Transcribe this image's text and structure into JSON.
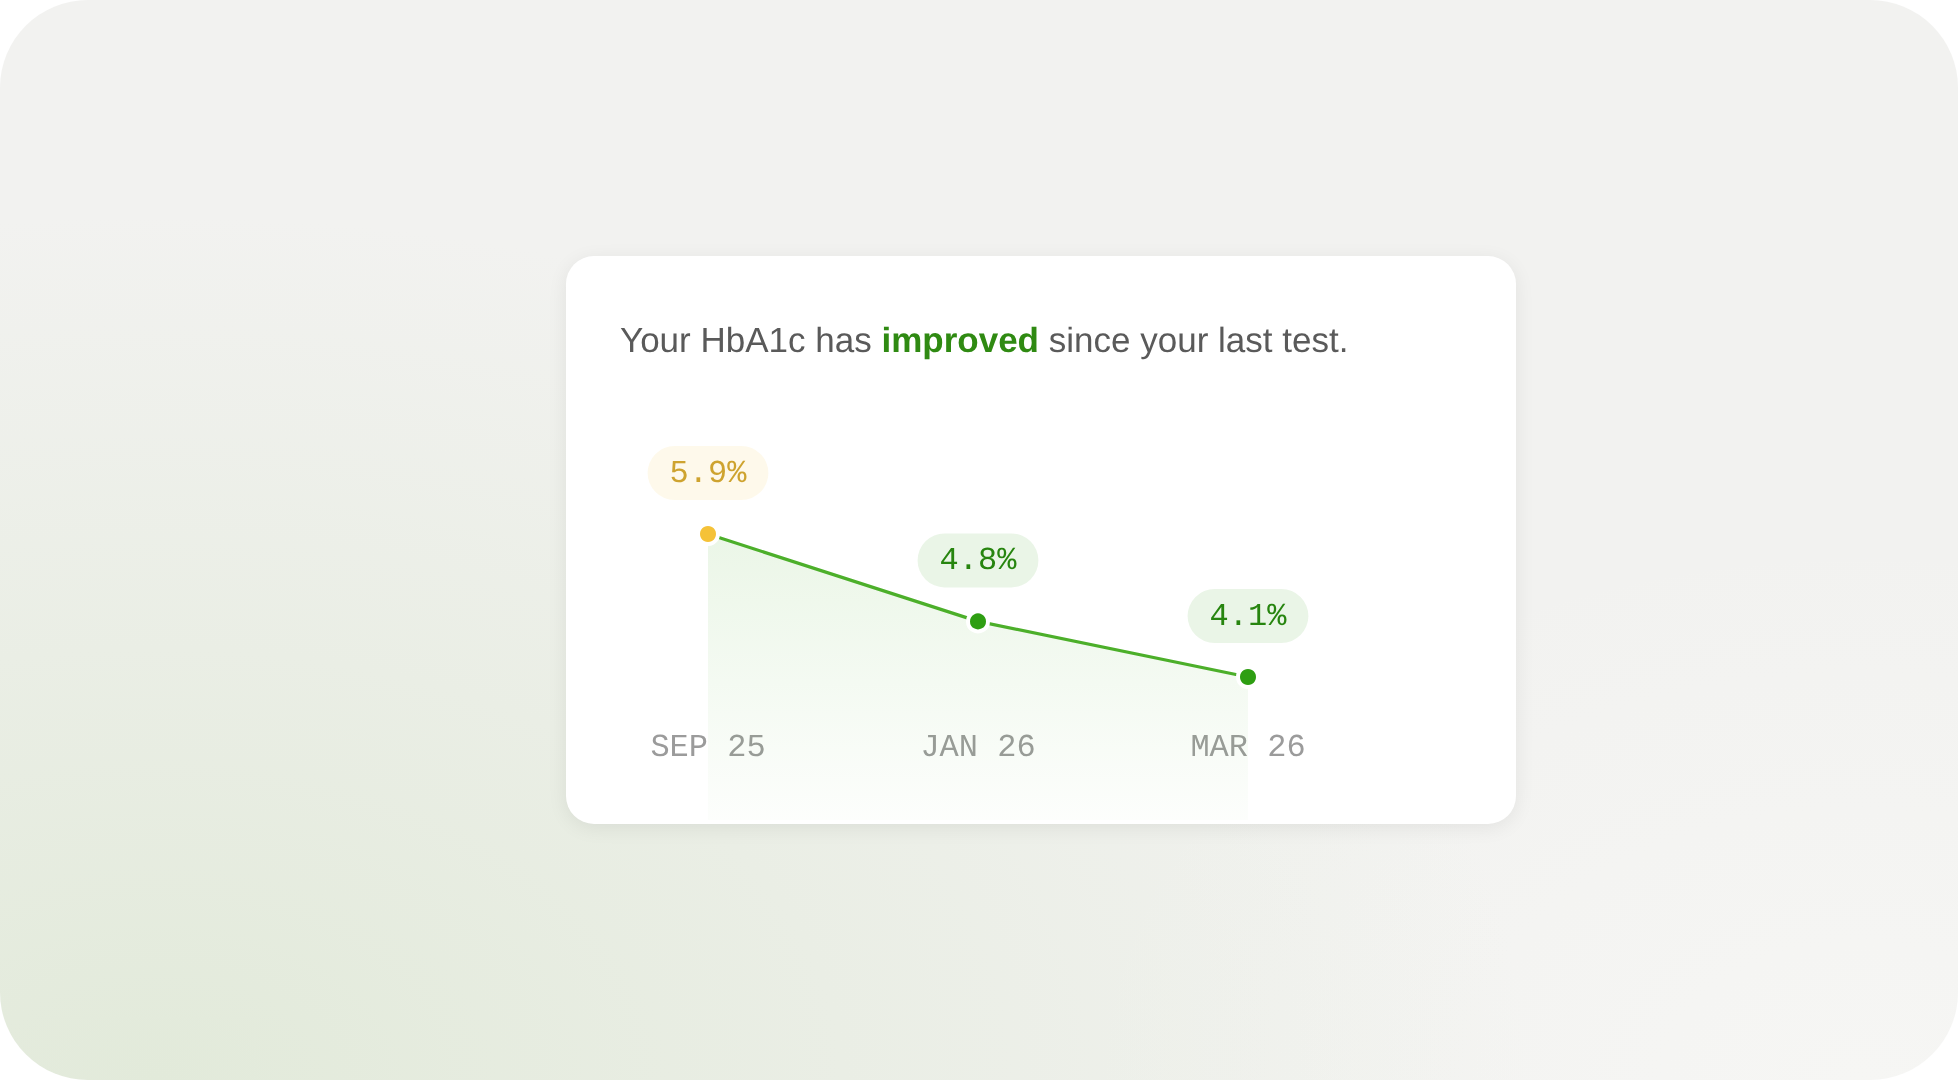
{
  "chart_data": {
    "type": "line",
    "title": "Your HbA1c has improved since your last test.",
    "categories": [
      "SEP 25",
      "JAN 26",
      "MAR 26"
    ],
    "values": [
      5.9,
      4.8,
      4.1
    ],
    "value_labels": [
      "5.9%",
      "4.8%",
      "4.1%"
    ],
    "color": "#4caf2a",
    "colors": [
      "#f5c238",
      "#2e9e12",
      "#2e9e12"
    ],
    "marker": "circle",
    "tick_labels": "x"
  }
}
